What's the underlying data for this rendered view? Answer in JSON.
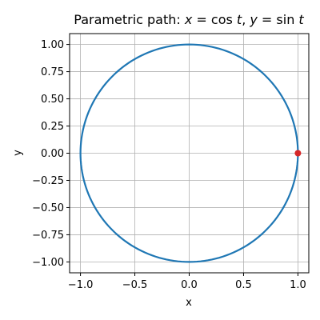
{
  "chart_data": {
    "type": "line",
    "title_prefix": "Parametric path:  ",
    "title_math": [
      "x",
      " = ",
      "cos",
      " t",
      ",  ",
      "y",
      " = ",
      "sin",
      " t"
    ],
    "xlabel": "x",
    "ylabel": "y",
    "xlim": [
      -1.1,
      1.1
    ],
    "ylim": [
      -1.1,
      1.1
    ],
    "xticks": [
      -1.0,
      -0.5,
      0.0,
      0.5,
      1.0
    ],
    "xtick_labels": [
      "−1.0",
      "−0.5",
      "0.0",
      "0.5",
      "1.0"
    ],
    "yticks": [
      1.0,
      0.75,
      0.5,
      0.25,
      0.0,
      -0.25,
      -0.5,
      -0.75,
      -1.0
    ],
    "ytick_labels": [
      "1.00",
      "0.75",
      "0.50",
      "0.25",
      "0.00",
      "−0.25",
      "−0.50",
      "−0.75",
      "−1.00"
    ],
    "grid": true,
    "series": [
      {
        "kind": "parametric-circle",
        "x_expr": "cos t",
        "y_expr": "sin t",
        "t_range_deg": [
          0,
          360
        ],
        "color": "#1f77b4"
      }
    ],
    "marker": {
      "x": 1.0,
      "y": 0.0,
      "color": "#d62728"
    }
  }
}
